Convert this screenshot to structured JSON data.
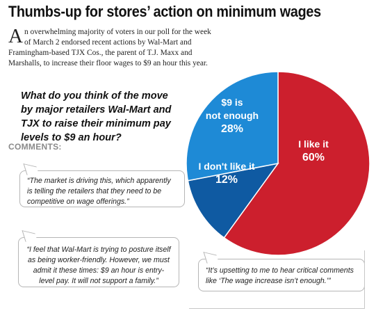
{
  "headline": "Thumbs-up for stores’ action on minimum wages",
  "intro": {
    "drop_cap": "A",
    "text": "n overwhelming majority of voters in our poll for the week of March 2 endorsed recent actions by Wal-Mart and Framingham-based TJX Cos., the parent of T.J. Maxx and Marshalls, to increase their floor wages to $9 an hour this year."
  },
  "question": "What do you think of the move by major retailers Wal-Mart and TJX to raise their minimum pay levels to $9 an hour?",
  "comments": {
    "heading": "COMMENTS:",
    "items": [
      "“The market is driving this, which apparently is telling the retailers that they need to be competitive on wage offerings.”",
      "“I feel that Wal-Mart is trying to posture itself as being worker-friendly. However, we must admit it these times: $9 an hour is entry-level pay. It will not support a family.”",
      "“It’s upsetting to me to hear critical comments like ‘The wage increase isn’t enough.’”"
    ]
  },
  "chart_data": {
    "type": "pie",
    "title": "",
    "slices": [
      {
        "label_lines": [
          "I like it"
        ],
        "value": 60,
        "value_label": "60%",
        "color": "#cc1f2d"
      },
      {
        "label_lines": [
          "I don't like it"
        ],
        "value": 12,
        "value_label": "12%",
        "color": "#0f5aa2"
      },
      {
        "label_lines": [
          "$9 is",
          "not enough"
        ],
        "value": 28,
        "value_label": "28%",
        "color": "#1e8ad6"
      }
    ]
  }
}
